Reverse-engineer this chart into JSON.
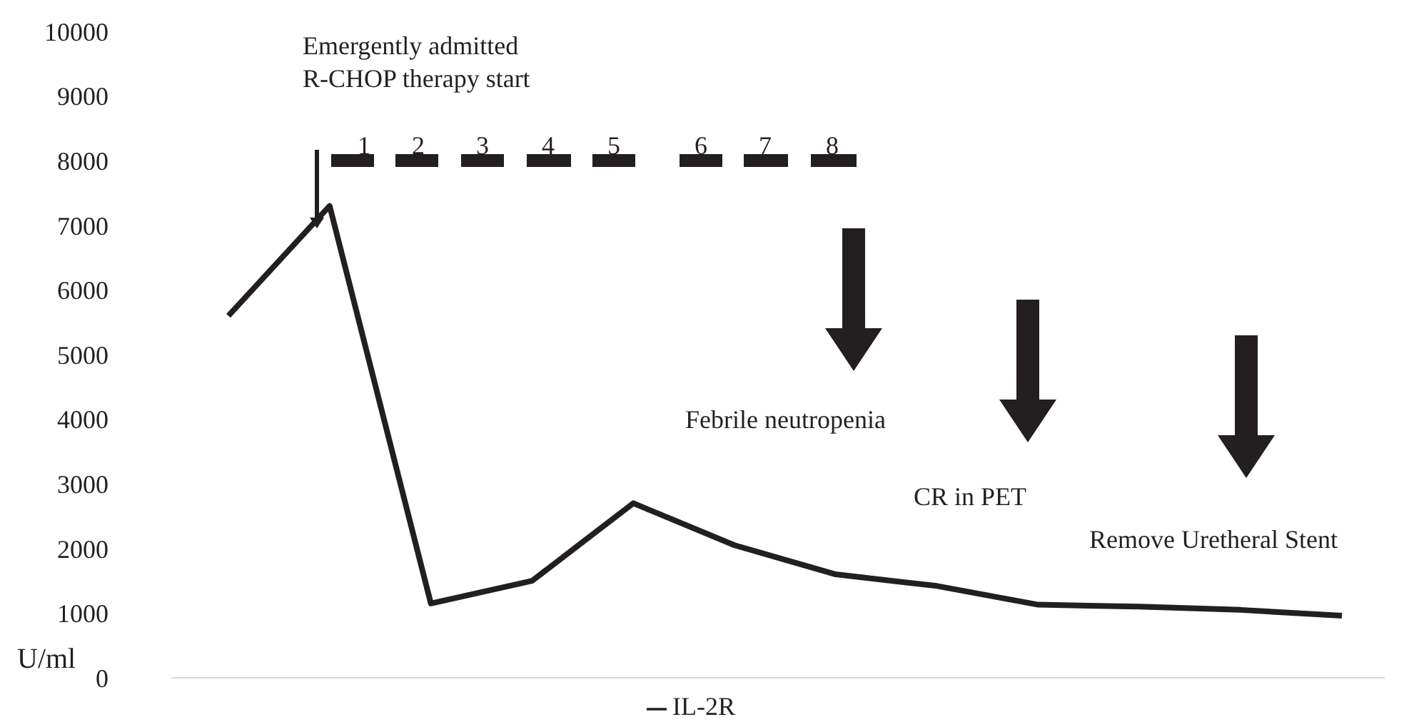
{
  "chart_data": {
    "type": "line",
    "ylabel": "U/ml",
    "categories": [
      null,
      null,
      null,
      null,
      null,
      null,
      null,
      null,
      null,
      null,
      null,
      null
    ],
    "series": [
      {
        "name": "IL-2R",
        "color": "#231f20",
        "values": [
          5600,
          7300,
          1150,
          1500,
          2700,
          2050,
          1600,
          1420,
          1130,
          1100,
          1050,
          960
        ]
      }
    ],
    "ylim": [
      0,
      10000
    ],
    "yticks": [
      0,
      1000,
      2000,
      3000,
      4000,
      5000,
      6000,
      7000,
      8000,
      9000,
      10000
    ],
    "grid": false,
    "legend": "bottom",
    "marker": "none",
    "line_style": "solid",
    "annotations": [
      "Emergently admitted\nR-CHOP therapy start",
      "1",
      "2",
      "3",
      "4",
      "5",
      "6",
      "7",
      "8",
      "Febrile neutropenia",
      "CR in PET",
      "Remove Uretheral Stent"
    ]
  }
}
